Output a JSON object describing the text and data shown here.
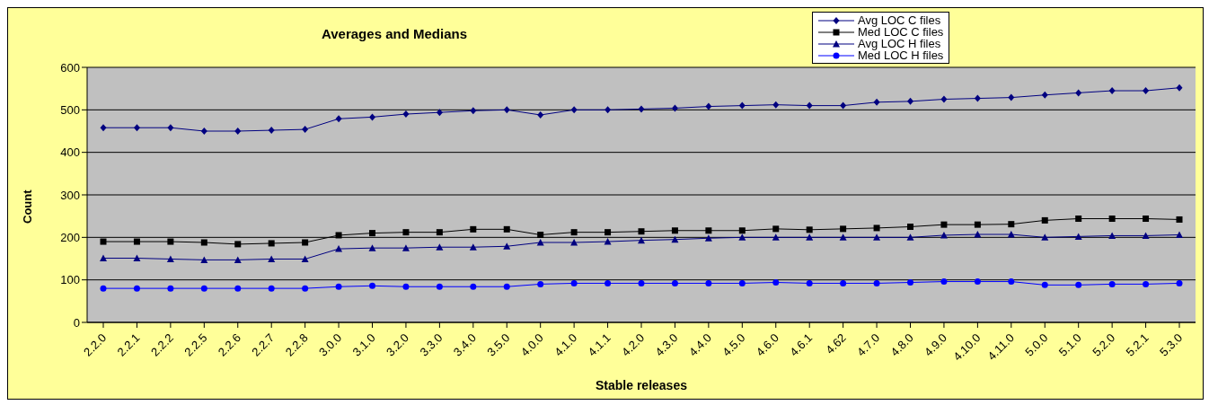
{
  "chart_data": {
    "type": "line",
    "title": "Averages and Medians",
    "xlabel": "Stable releases",
    "ylabel": "Count",
    "categories": [
      "2.2.0",
      "2.2.1",
      "2.2.2",
      "2.2.5",
      "2.2.6",
      "2.2.7",
      "2.2.8",
      "3.0.0",
      "3.1.0",
      "3.2.0",
      "3.3.0",
      "3.4.0",
      "3.5.0",
      "4.0.0",
      "4.1.0",
      "4.1.1",
      "4.2.0",
      "4.3.0",
      "4.4.0",
      "4.5.0",
      "4.6.0",
      "4.6.1",
      "4.62",
      "4.7.0",
      "4.8.0",
      "4.9.0",
      "4.10.0",
      "4.11.0",
      "5.0.0",
      "5.1.0",
      "5.2.0",
      "5.2.1",
      "5.3.0"
    ],
    "series": [
      {
        "name": "Avg LOC C files",
        "color": "#000080",
        "marker": "diamond",
        "values": [
          458,
          458,
          458,
          450,
          450,
          452,
          454,
          479,
          483,
          490,
          494,
          498,
          500,
          488,
          500,
          500,
          502,
          504,
          508,
          510,
          512,
          510,
          510,
          518,
          520,
          525,
          527,
          529,
          535,
          540,
          545,
          545,
          552
        ]
      },
      {
        "name": "Med LOC C files",
        "color": "#000000",
        "marker": "square",
        "values": [
          190,
          190,
          190,
          188,
          184,
          186,
          188,
          205,
          210,
          212,
          212,
          219,
          219,
          206,
          212,
          212,
          214,
          216,
          216,
          216,
          220,
          218,
          220,
          222,
          225,
          230,
          230,
          231,
          240,
          244,
          244,
          244,
          242
        ]
      },
      {
        "name": "Avg LOC H files",
        "color": "#000080",
        "marker": "triangle",
        "values": [
          151,
          151,
          149,
          147,
          147,
          149,
          149,
          173,
          175,
          175,
          177,
          177,
          179,
          188,
          188,
          190,
          193,
          195,
          198,
          200,
          200,
          200,
          200,
          200,
          200,
          205,
          207,
          207,
          200,
          202,
          204,
          204,
          206
        ]
      },
      {
        "name": "Med LOC H files",
        "color": "#0000ff",
        "marker": "circle",
        "values": [
          80,
          80,
          80,
          80,
          80,
          80,
          80,
          84,
          86,
          84,
          84,
          84,
          84,
          90,
          92,
          92,
          92,
          92,
          92,
          92,
          94,
          92,
          92,
          92,
          94,
          96,
          96,
          96,
          88,
          88,
          90,
          90,
          92
        ]
      }
    ],
    "ylim": [
      0,
      600
    ],
    "yticks": [
      0,
      100,
      200,
      300,
      400,
      500,
      600
    ],
    "grid": "y",
    "legend": "top right"
  }
}
